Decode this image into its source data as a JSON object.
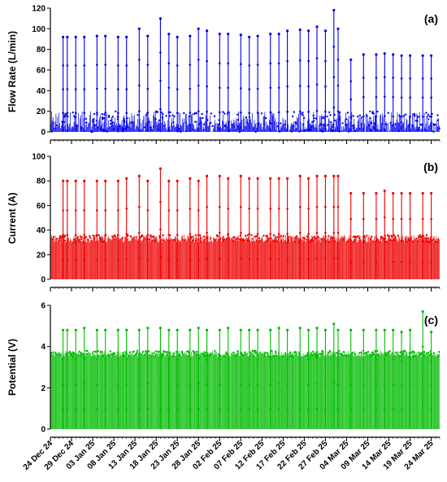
{
  "chart_data": [
    {
      "type": "line",
      "panel_label": "(a)",
      "ylabel": "Flow Rate (L/min)",
      "ylim": [
        0,
        120
      ],
      "yticks": [
        0,
        20,
        40,
        60,
        80,
        100,
        120
      ],
      "color": "#0000ee",
      "baseline_range": [
        0,
        20
      ],
      "spike_dates": [
        "2024-12-27",
        "2024-12-28",
        "2024-12-30",
        "2025-01-01",
        "2025-01-04",
        "2025-01-06",
        "2025-01-09",
        "2025-01-11",
        "2025-01-14",
        "2025-01-16",
        "2025-01-19",
        "2025-01-21",
        "2025-01-23",
        "2025-01-26",
        "2025-01-28",
        "2025-01-30",
        "2025-02-02",
        "2025-02-04",
        "2025-02-07",
        "2025-02-09",
        "2025-02-11",
        "2025-02-14",
        "2025-02-16",
        "2025-02-18",
        "2025-02-21",
        "2025-02-23",
        "2025-02-25",
        "2025-02-27",
        "2025-03-01",
        "2025-03-02",
        "2025-03-05",
        "2025-03-08",
        "2025-03-11",
        "2025-03-13",
        "2025-03-15",
        "2025-03-17",
        "2025-03-19",
        "2025-03-22",
        "2025-03-24"
      ],
      "spike_values": [
        92,
        92,
        92,
        92,
        93,
        93,
        92,
        92,
        100,
        93,
        110,
        95,
        92,
        93,
        100,
        98,
        95,
        95,
        94,
        92,
        93,
        95,
        95,
        98,
        99,
        98,
        102,
        98,
        118,
        100,
        70,
        75,
        75,
        76,
        75,
        74,
        74,
        74,
        74
      ]
    },
    {
      "type": "line",
      "panel_label": "(b)",
      "ylabel": "Current (A)",
      "ylim": [
        0,
        100
      ],
      "yticks": [
        0,
        20,
        40,
        60,
        80,
        100
      ],
      "color": "#ee0000",
      "baseline_range": [
        30,
        36
      ],
      "spike_dates": [
        "2024-12-27",
        "2024-12-28",
        "2024-12-30",
        "2025-01-01",
        "2025-01-04",
        "2025-01-06",
        "2025-01-09",
        "2025-01-11",
        "2025-01-14",
        "2025-01-16",
        "2025-01-19",
        "2025-01-21",
        "2025-01-23",
        "2025-01-26",
        "2025-01-28",
        "2025-01-30",
        "2025-02-02",
        "2025-02-04",
        "2025-02-07",
        "2025-02-09",
        "2025-02-11",
        "2025-02-14",
        "2025-02-16",
        "2025-02-18",
        "2025-02-21",
        "2025-02-23",
        "2025-02-25",
        "2025-02-27",
        "2025-03-01",
        "2025-03-02",
        "2025-03-05",
        "2025-03-08",
        "2025-03-11",
        "2025-03-13",
        "2025-03-15",
        "2025-03-17",
        "2025-03-19",
        "2025-03-22",
        "2025-03-24"
      ],
      "spike_values": [
        80,
        80,
        80,
        80,
        80,
        80,
        80,
        82,
        84,
        80,
        90,
        80,
        80,
        82,
        80,
        84,
        84,
        82,
        84,
        82,
        82,
        82,
        82,
        82,
        84,
        82,
        84,
        84,
        84,
        84,
        70,
        70,
        70,
        72,
        70,
        70,
        70,
        70,
        70
      ]
    },
    {
      "type": "line",
      "panel_label": "(c)",
      "ylabel": "Potential (V)",
      "ylim": [
        0,
        6
      ],
      "yticks": [
        0,
        2,
        4,
        6
      ],
      "color": "#00bb00",
      "baseline_range": [
        3.5,
        3.8
      ],
      "spike_dates": [
        "2024-12-27",
        "2024-12-28",
        "2024-12-30",
        "2025-01-01",
        "2025-01-04",
        "2025-01-06",
        "2025-01-09",
        "2025-01-11",
        "2025-01-14",
        "2025-01-16",
        "2025-01-19",
        "2025-01-21",
        "2025-01-23",
        "2025-01-26",
        "2025-01-28",
        "2025-01-30",
        "2025-02-02",
        "2025-02-04",
        "2025-02-07",
        "2025-02-09",
        "2025-02-11",
        "2025-02-14",
        "2025-02-16",
        "2025-02-18",
        "2025-02-21",
        "2025-02-23",
        "2025-02-25",
        "2025-02-27",
        "2025-03-01",
        "2025-03-02",
        "2025-03-05",
        "2025-03-08",
        "2025-03-11",
        "2025-03-13",
        "2025-03-15",
        "2025-03-17",
        "2025-03-19",
        "2025-03-22",
        "2025-03-24"
      ],
      "spike_values": [
        4.8,
        4.8,
        4.8,
        4.9,
        4.8,
        4.8,
        4.8,
        4.8,
        4.8,
        4.9,
        4.9,
        4.8,
        4.8,
        4.8,
        4.9,
        4.8,
        4.8,
        4.9,
        4.8,
        4.8,
        4.8,
        4.8,
        4.9,
        4.8,
        4.9,
        4.8,
        4.9,
        4.8,
        5.1,
        4.8,
        4.8,
        4.8,
        4.8,
        4.8,
        4.8,
        4.7,
        4.8,
        5.7,
        4.7
      ]
    }
  ],
  "x_axis": {
    "range": [
      "2024-12-24",
      "2025-03-26"
    ],
    "tick_labels": [
      "24 Dec 24",
      "29 Dec 24",
      "03 Jan 25",
      "08 Jan 25",
      "13 Jan 25",
      "18 Jan 25",
      "23 Jan 25",
      "28 Jan 25",
      "02 Feb 25",
      "07 Feb 25",
      "12 Feb 25",
      "17 Feb 25",
      "22 Feb 25",
      "27 Feb 25",
      "04 Mar 25",
      "09 Mar 25",
      "14 Mar 25",
      "19 Mar 25",
      "24 Mar 25"
    ],
    "tick_dates": [
      "2024-12-24",
      "2024-12-29",
      "2025-01-03",
      "2025-01-08",
      "2025-01-13",
      "2025-01-18",
      "2025-01-23",
      "2025-01-28",
      "2025-02-02",
      "2025-02-07",
      "2025-02-12",
      "2025-02-17",
      "2025-02-22",
      "2025-02-27",
      "2025-03-04",
      "2025-03-09",
      "2025-03-14",
      "2025-03-19",
      "2025-03-24"
    ]
  }
}
